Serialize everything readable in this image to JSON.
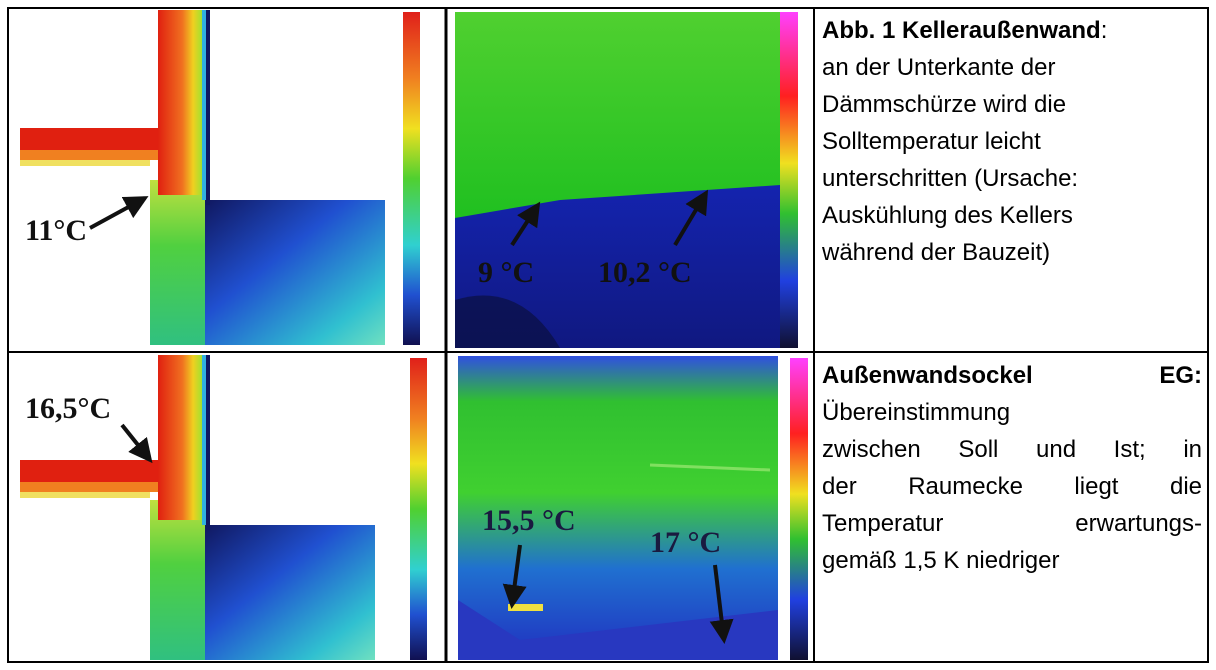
{
  "table": {
    "rows": [
      {
        "simulation": {
          "label": "11°C"
        },
        "thermal": {
          "labels": [
            "9 °C",
            "10,2 °C"
          ]
        },
        "caption": {
          "title": "Abb. 1 Kelleraußenwand",
          "title_suffix": ":",
          "lines": [
            "an der Unterkante der",
            "Dämmschürze wird die",
            "Solltemperatur leicht",
            "unterschritten (Ursache:",
            "Auskühlung des Kellers",
            "während der Bauzeit)"
          ]
        }
      },
      {
        "simulation": {
          "label": "16,5°C"
        },
        "thermal": {
          "labels": [
            "15,5 °C",
            "17 °C"
          ]
        },
        "caption": {
          "title": "Außenwandsockel EG:",
          "lines": [
            "Übereinstimmung",
            "zwischen Soll und Ist; in",
            "der Raumecke liegt die",
            "Temperatur erwartungs-",
            "gemäß 1,5 K niedriger"
          ]
        }
      }
    ]
  }
}
